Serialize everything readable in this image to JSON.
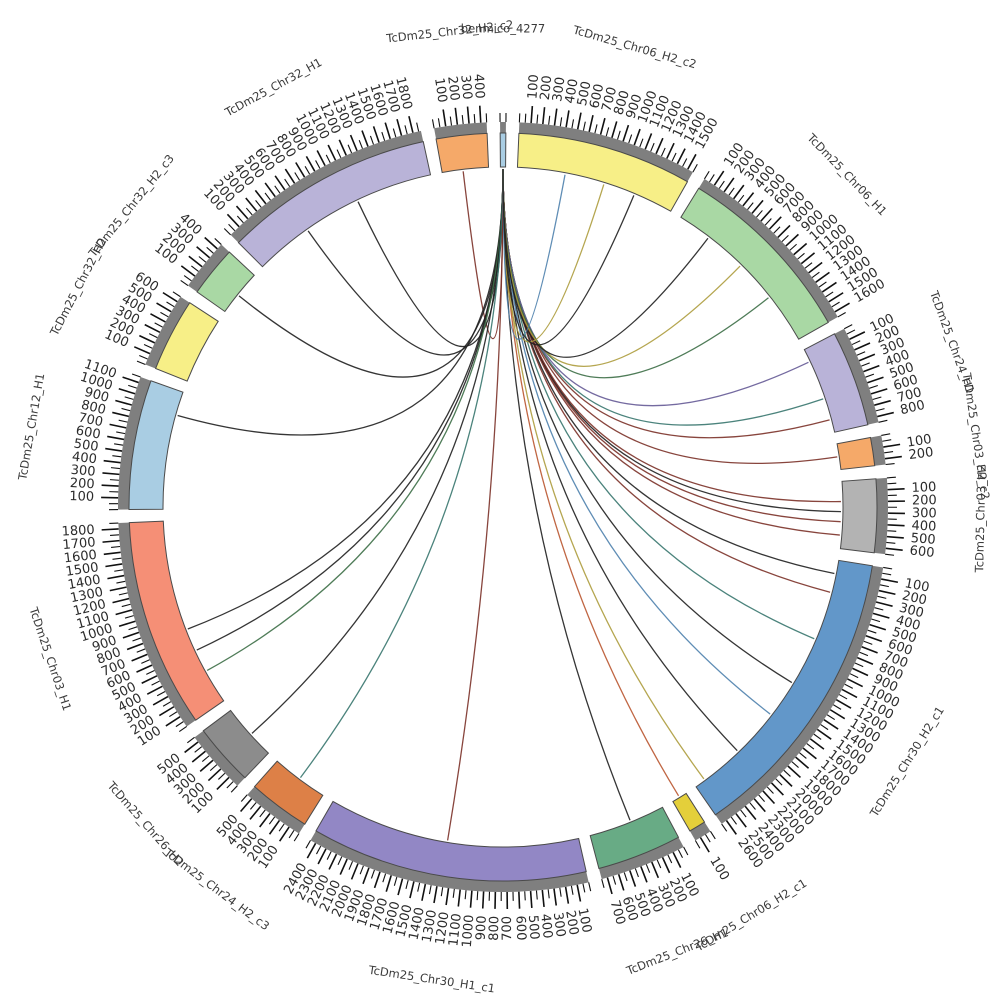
{
  "chart_data": {
    "type": "circos",
    "link_source": "benmico_4277",
    "gap_degrees": 2.0,
    "tick_minor_interval": 50,
    "tick_major_interval": 100,
    "style": {
      "background": "#ffffff",
      "band_gray": "#7f7f7f",
      "segment_outline": "#4a4a4a",
      "tick_color": "#111111",
      "tick_label_color": "#2b2b2b",
      "name_label_color": "#3a3a3a"
    },
    "segments": [
      {
        "id": "benmico_4277",
        "label": "benmico_4277",
        "color": "#a9cde3",
        "length": 50
      },
      {
        "id": "TcDm25_Chr06_H2_c2",
        "label": "TcDm25_Chr06_H2_c2",
        "color": "#f7ef87",
        "length": 1550
      },
      {
        "id": "TcDm25_Chr06_H1",
        "label": "TcDm25_Chr06_H1",
        "color": "#a9d8a4",
        "length": 1650
      },
      {
        "id": "TcDm25_Chr24_H1",
        "label": "TcDm25_Chr24_H1",
        "color": "#b9b3d8",
        "length": 850
      },
      {
        "id": "TcDm25_Chr03_H2_c2",
        "label": "TcDm25_Chr03_H2_c2",
        "color": "#f5a969",
        "length": 250
      },
      {
        "id": "TcDm25_Chr03_H2",
        "label": "TcDm25_Chr03_H2",
        "color": "#b3b3b3",
        "length": 650
      },
      {
        "id": "TcDm25_Chr30_H2_c1",
        "label": "TcDm25_Chr30_H2_c1",
        "color": "#6297c9",
        "length": 2650
      },
      {
        "id": "TcDm25_Chr06_H2_c1",
        "label": "TcDm25_Chr06_H2_c1",
        "color": "#e4cf3a",
        "length": 150
      },
      {
        "id": "TcDm25_Chr26_H1",
        "label": "TcDm25_Chr26_H1",
        "color": "#68ab85",
        "length": 750
      },
      {
        "id": "TcDm25_Chr30_H1_c1",
        "label": "TcDm25_Chr30_H1_c1",
        "color": "#9287c5",
        "length": 2450
      },
      {
        "id": "TcDm25_Chr24_H2_c3",
        "label": "TcDm25_Chr24_H2_c3",
        "color": "#dd8047",
        "length": 550
      },
      {
        "id": "TcDm25_Chr26_H2",
        "label": "TcDm25_Chr26_H2",
        "color": "#8c8c8c",
        "length": 550
      },
      {
        "id": "TcDm25_Chr03_H1",
        "label": "TcDm25_Chr03_H1",
        "color": "#f58f76",
        "length": 1850
      },
      {
        "id": "TcDm25_Chr12_H1",
        "label": "TcDm25_Chr12_H1",
        "color": "#a9cde3",
        "length": 1150
      },
      {
        "id": "TcDm25_Chr32_H2",
        "label": "TcDm25_Chr32_H2",
        "color": "#f7ef87",
        "length": 650
      },
      {
        "id": "TcDm25_Chr32_H2_c3",
        "label": "TcDm25_Chr32_H2_c3",
        "color": "#a9d8a4",
        "length": 450
      },
      {
        "id": "TcDm25_Chr32_H1",
        "label": "TcDm25_Chr32_H1",
        "color": "#b9b3d8",
        "length": 1870
      },
      {
        "id": "TcDm25_Chr32_H2_c2",
        "label": "TcDm25_Chr32_H2_c2",
        "color": "#f5a969",
        "length": 450
      }
    ],
    "links": [
      {
        "target": "TcDm25_Chr32_H2_c2",
        "pos": 0.45,
        "color": "#7b3128"
      },
      {
        "target": "TcDm25_Chr32_H1",
        "pos": 0.6,
        "color": "#1f1f1f"
      },
      {
        "target": "TcDm25_Chr32_H1",
        "pos": 0.3,
        "color": "#1f1f1f"
      },
      {
        "target": "TcDm25_Chr32_H2_c3",
        "pos": 0.45,
        "color": "#1f1f1f"
      },
      {
        "target": "TcDm25_Chr12_H1",
        "pos": 0.8,
        "color": "#1f1f1f"
      },
      {
        "target": "TcDm25_Chr03_H1",
        "pos": 0.42,
        "color": "#1f1f1f"
      },
      {
        "target": "TcDm25_Chr03_H1",
        "pos": 0.3,
        "color": "#1f1f1f"
      },
      {
        "target": "TcDm25_Chr03_H1",
        "pos": 0.18,
        "color": "#3c6e46"
      },
      {
        "target": "TcDm25_Chr26_H2",
        "pos": 0.45,
        "color": "#1f1f1f"
      },
      {
        "target": "TcDm25_Chr24_H2_c3",
        "pos": 0.5,
        "color": "#37766e"
      },
      {
        "target": "TcDm25_Chr30_H1_c1",
        "pos": 0.52,
        "color": "#7b3128"
      },
      {
        "target": "TcDm25_Chr26_H1",
        "pos": 0.45,
        "color": "#1f1f1f"
      },
      {
        "target": "TcDm25_Chr06_H2_c1",
        "pos": 0.5,
        "color": "#b9552f"
      },
      {
        "target": "TcDm25_Chr30_H2_c1",
        "pos": 0.96,
        "color": "#ad9c3d"
      },
      {
        "target": "TcDm25_Chr30_H2_c1",
        "pos": 0.8,
        "color": "#1f1f1f"
      },
      {
        "target": "TcDm25_Chr30_H2_c1",
        "pos": 0.62,
        "color": "#4e81ad"
      },
      {
        "target": "TcDm25_Chr30_H2_c1",
        "pos": 0.48,
        "color": "#1f1f1f"
      },
      {
        "target": "TcDm25_Chr30_H2_c1",
        "pos": 0.3,
        "color": "#37766e"
      },
      {
        "target": "TcDm25_Chr30_H2_c1",
        "pos": 0.12,
        "color": "#7b3128"
      },
      {
        "target": "TcDm25_Chr30_H2_c1",
        "pos": 0.05,
        "color": "#1f1f1f"
      },
      {
        "target": "TcDm25_Chr03_H2",
        "pos": 0.8,
        "color": "#7b3128"
      },
      {
        "target": "TcDm25_Chr03_H2",
        "pos": 0.6,
        "color": "#7b3128"
      },
      {
        "target": "TcDm25_Chr03_H2",
        "pos": 0.45,
        "color": "#1f1f1f"
      },
      {
        "target": "TcDm25_Chr03_H2",
        "pos": 0.3,
        "color": "#7b3128"
      },
      {
        "target": "TcDm25_Chr03_H2_c2",
        "pos": 0.5,
        "color": "#7b3128"
      },
      {
        "target": "TcDm25_Chr24_H1",
        "pos": 0.85,
        "color": "#7b3128"
      },
      {
        "target": "TcDm25_Chr24_H1",
        "pos": 0.6,
        "color": "#37766e"
      },
      {
        "target": "TcDm25_Chr24_H1",
        "pos": 0.15,
        "color": "#655a96"
      },
      {
        "target": "TcDm25_Chr06_H1",
        "pos": 0.7,
        "color": "#3c6e46"
      },
      {
        "target": "TcDm25_Chr06_H1",
        "pos": 0.45,
        "color": "#ad9c3d"
      },
      {
        "target": "TcDm25_Chr06_H1",
        "pos": 0.2,
        "color": "#1f1f1f"
      },
      {
        "target": "TcDm25_Chr06_H2_c2",
        "pos": 0.55,
        "color": "#ad9c3d"
      },
      {
        "target": "TcDm25_Chr06_H2_c2",
        "pos": 0.3,
        "color": "#4e81ad"
      },
      {
        "target": "TcDm25_Chr06_H2_c2",
        "pos": 0.75,
        "color": "#1f1f1f"
      }
    ]
  }
}
